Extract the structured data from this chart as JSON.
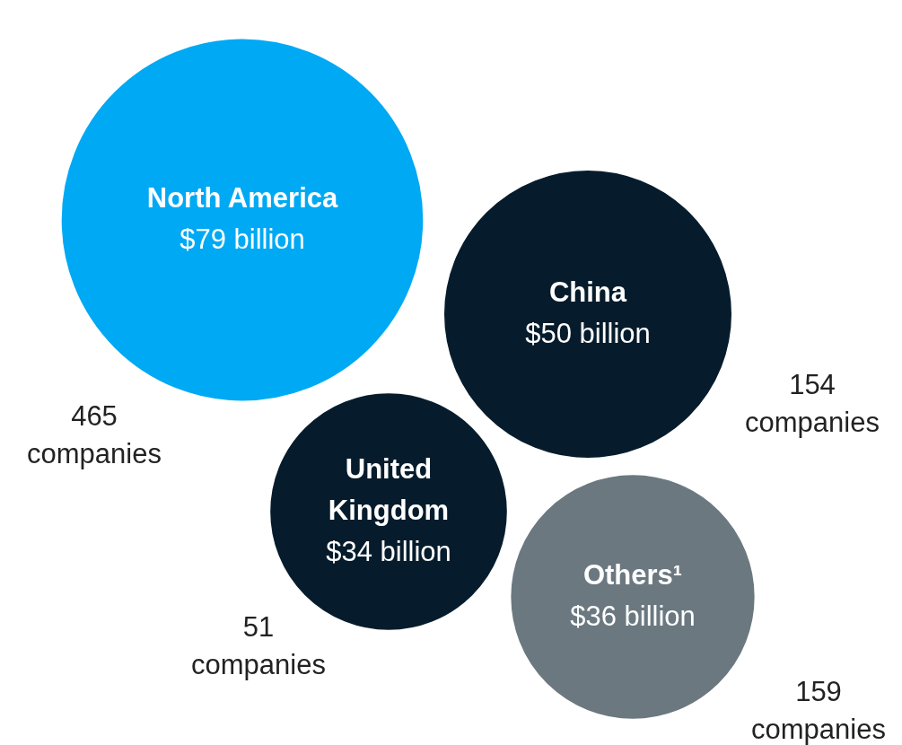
{
  "chart_data": {
    "type": "other",
    "categories": [
      "North America",
      "China",
      "United Kingdom",
      "Others¹"
    ],
    "values": [
      79,
      50,
      34,
      36
    ],
    "value_labels": [
      "$79 billion",
      "$50 billion",
      "$34 billion",
      "$36 billion"
    ],
    "colors": [
      "#00a9f4",
      "#061c2c",
      "#061c2c",
      "#6b7880"
    ],
    "annotations": [
      "465 companies",
      "154 companies",
      "51 companies",
      "159 companies"
    ]
  }
}
